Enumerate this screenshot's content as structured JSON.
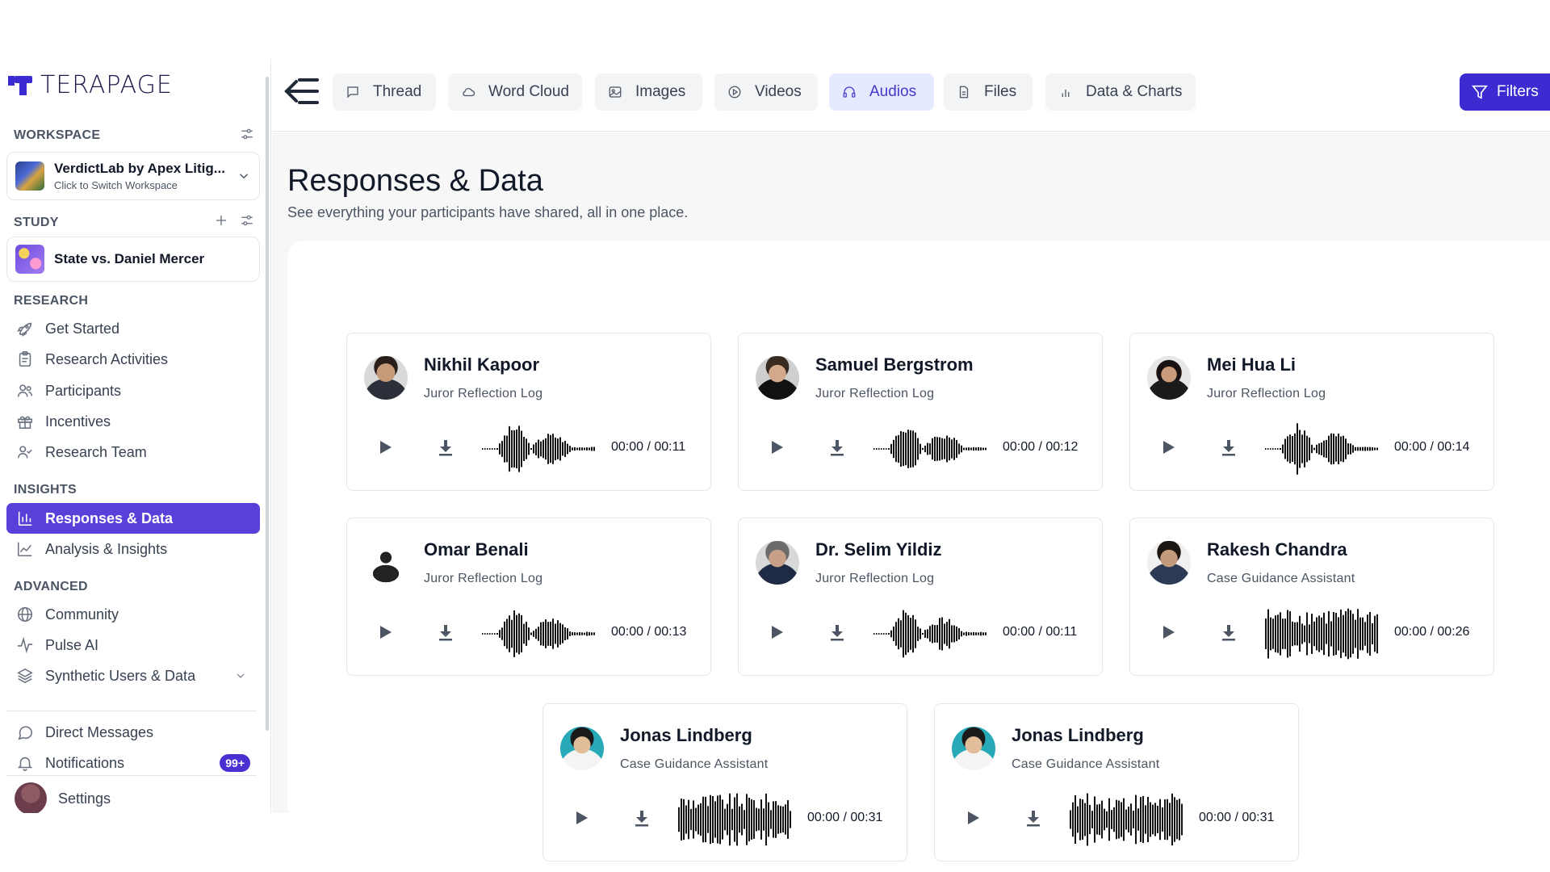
{
  "brand": {
    "name": "TERAPAGE"
  },
  "sidebar": {
    "workspace": {
      "section_title": "WORKSPACE",
      "name": "VerdictLab by Apex Litig...",
      "subtitle": "Click to Switch Workspace"
    },
    "study": {
      "section_title": "STUDY",
      "name": "State vs. Daniel Mercer"
    },
    "research": {
      "section_title": "RESEARCH",
      "items": [
        {
          "label": "Get Started",
          "icon": "rocket-icon"
        },
        {
          "label": "Research Activities",
          "icon": "clipboard-icon"
        },
        {
          "label": "Participants",
          "icon": "users-icon"
        },
        {
          "label": "Incentives",
          "icon": "gift-icon"
        },
        {
          "label": "Research Team",
          "icon": "user-check-icon"
        }
      ]
    },
    "insights": {
      "section_title": "INSIGHTS",
      "items": [
        {
          "label": "Responses & Data",
          "icon": "bar-chart-icon",
          "active": true
        },
        {
          "label": "Analysis & Insights",
          "icon": "line-chart-icon"
        }
      ]
    },
    "advanced": {
      "section_title": "ADVANCED",
      "items": [
        {
          "label": "Community",
          "icon": "globe-icon"
        },
        {
          "label": "Pulse AI",
          "icon": "pulse-icon"
        },
        {
          "label": "Synthetic Users & Data",
          "icon": "layers-icon"
        }
      ]
    },
    "bottom": {
      "direct_messages": "Direct Messages",
      "notifications": "Notifications",
      "notifications_badge": "99+",
      "settings": "Settings"
    }
  },
  "topbar": {
    "tabs": [
      {
        "label": "Thread",
        "icon": "message-square-icon"
      },
      {
        "label": "Word Cloud",
        "icon": "cloud-icon"
      },
      {
        "label": "Images",
        "icon": "image-icon"
      },
      {
        "label": "Videos",
        "icon": "play-circle-icon"
      },
      {
        "label": "Audios",
        "icon": "headphones-icon",
        "active": true
      },
      {
        "label": "Files",
        "icon": "file-icon"
      },
      {
        "label": "Data & Charts",
        "icon": "bar-chart-small-icon"
      }
    ],
    "filters_label": "Filters"
  },
  "main": {
    "title": "Responses & Data",
    "subtitle": "See everything your participants have shared, all in one place.",
    "audio_cards": [
      {
        "name": "Nikhil Kapoor",
        "label": "Juror Reflection Log",
        "time": "00:00 / 00:11"
      },
      {
        "name": "Samuel Bergstrom",
        "label": "Juror Reflection Log",
        "time": "00:00 / 00:12"
      },
      {
        "name": "Mei Hua Li",
        "label": "Juror Reflection Log",
        "time": "00:00 / 00:14"
      },
      {
        "name": "Omar Benali",
        "label": "Juror Reflection Log",
        "time": "00:00 / 00:13"
      },
      {
        "name": "Dr. Selim Yildiz",
        "label": "Juror Reflection Log",
        "time": "00:00 / 00:11"
      },
      {
        "name": "Rakesh Chandra",
        "label": "Case Guidance Assistant",
        "time": "00:00 / 00:26"
      },
      {
        "name": "Jonas Lindberg",
        "label": "Case Guidance Assistant",
        "time": "00:00 / 00:31"
      },
      {
        "name": "Jonas Lindberg",
        "label": "Case Guidance Assistant",
        "time": "00:00 / 00:31"
      }
    ]
  },
  "colors": {
    "accent": "#5b3fd9",
    "filters": "#3b2bd1",
    "active_tab_bg": "#e4ebff"
  }
}
